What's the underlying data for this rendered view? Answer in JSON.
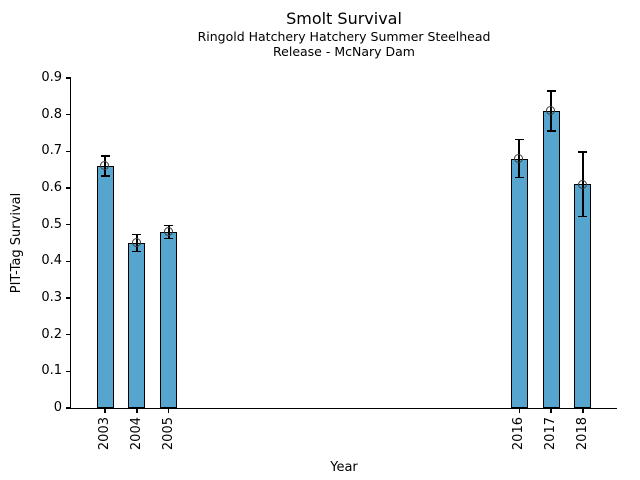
{
  "chart_data": {
    "type": "bar",
    "title": "Smolt Survival",
    "subtitle1": "Ringold Hatchery Hatchery Summer Steelhead",
    "subtitle2": "Release - McNary Dam",
    "xlabel": "Year",
    "ylabel": "PIT-Tag Survival",
    "categories": [
      2003,
      2004,
      2005,
      2016,
      2017,
      2018
    ],
    "values": [
      0.66,
      0.45,
      0.48,
      0.68,
      0.81,
      0.61
    ],
    "errors": [
      0.027,
      0.023,
      0.018,
      0.052,
      0.055,
      0.088
    ],
    "ylim": [
      0,
      0.9
    ],
    "xlim_years": [
      2001.93,
      2019.07
    ],
    "yticks": [
      {
        "v": 0.0,
        "label": "0"
      },
      {
        "v": 0.1,
        "label": "0.1"
      },
      {
        "v": 0.2,
        "label": "0.2"
      },
      {
        "v": 0.3,
        "label": "0.3"
      },
      {
        "v": 0.4,
        "label": "0.4"
      },
      {
        "v": 0.5,
        "label": "0.5"
      },
      {
        "v": 0.6,
        "label": "0.6"
      },
      {
        "v": 0.7,
        "label": "0.7"
      },
      {
        "v": 0.8,
        "label": "0.8"
      },
      {
        "v": 0.9,
        "label": "0.9"
      }
    ],
    "grid": false,
    "legend": "none",
    "bar_color": "#55a5cf",
    "bar_edge_color": "#000000",
    "errorbar_color": "#000000",
    "marker": "open-circle",
    "background": "#ffffff"
  }
}
